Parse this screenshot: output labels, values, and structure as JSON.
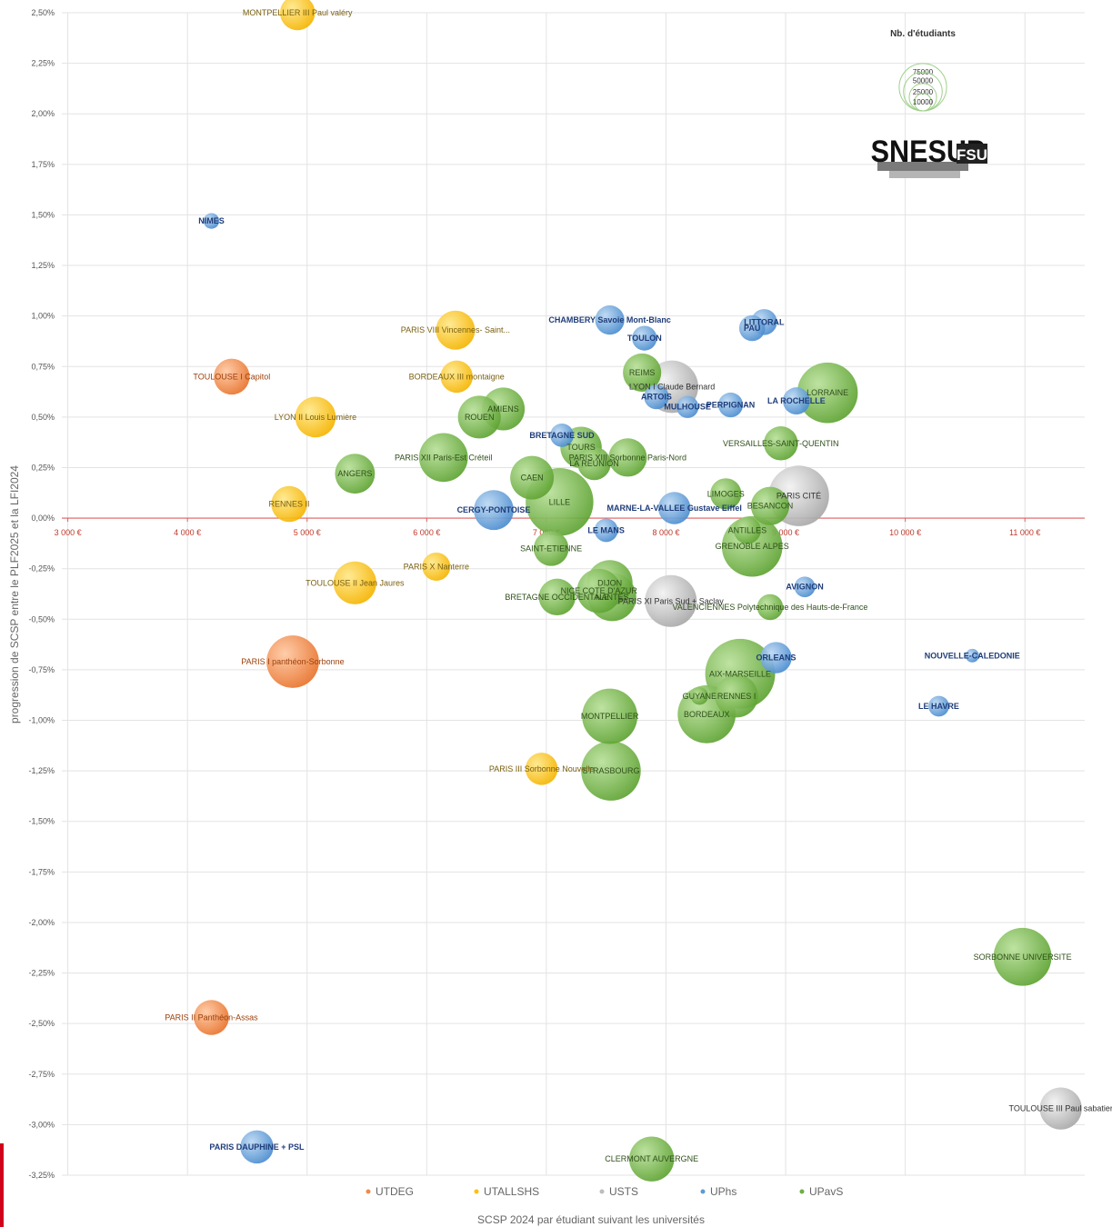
{
  "colors": {
    "UTDEG": "#f08a4b",
    "UTALLSHS": "#ffc000",
    "USTS": "#bdbdbd",
    "UPhs": "#5b9bd5",
    "UPavS": "#70ad47",
    "zero_line": "#e06060",
    "grid": "#e3e3e3"
  },
  "logo": {
    "text": "SNESUP",
    "suffix": "FSU"
  },
  "chart_data": {
    "type": "bubble",
    "xlabel": "SCSP 2024 par étudiant suivant les universités",
    "ylabel": "progression de SCSP entre le PLF2025 et la LFI2024",
    "xlim": [
      2950,
      11500
    ],
    "ylim": [
      -3.25,
      2.5
    ],
    "x_ticks": [
      3000,
      4000,
      5000,
      6000,
      7000,
      8000,
      9000,
      10000,
      11000
    ],
    "x_tick_labels": [
      "3 000 €",
      "4 000 €",
      "5 000 €",
      "6 000 €",
      "7 000 €",
      "8 000 €",
      "9 000 €",
      "10 000 €",
      "11 000 €"
    ],
    "y_ticks": [
      2.5,
      2.25,
      2.0,
      1.75,
      1.5,
      1.25,
      1.0,
      0.75,
      0.5,
      0.25,
      0.0,
      -0.25,
      -0.5,
      -0.75,
      -1.0,
      -1.25,
      -1.5,
      -1.75,
      -2.0,
      -2.25,
      -2.5,
      -2.75,
      -3.0,
      -3.25
    ],
    "y_tick_labels": [
      "2,50%",
      "2,25%",
      "2,00%",
      "1,75%",
      "1,50%",
      "1,25%",
      "1,00%",
      "0,75%",
      "0,50%",
      "0,25%",
      "0,00%",
      "-0,25%",
      "-0,50%",
      "-0,75%",
      "-1,00%",
      "-1,25%",
      "-1,50%",
      "-1,75%",
      "-2,00%",
      "-2,25%",
      "-2,50%",
      "-2,75%",
      "-3,00%",
      "-3,25%"
    ],
    "size_legend": {
      "title": "Nb. d'étudiants",
      "values": [
        75000,
        50000,
        25000,
        10000
      ],
      "labels": [
        "75000",
        "50000",
        "25000",
        "10000"
      ]
    },
    "series": [
      {
        "name": "UTDEG",
        "points": [
          {
            "label": "TOULOUSE I Capitol",
            "x": 4370,
            "y": 0.7,
            "students": 21000
          },
          {
            "label": "PARIS I panthéon-Sorbonne",
            "x": 4880,
            "y": -0.71,
            "students": 45000
          },
          {
            "label": "PARIS II Panthéon-Assas",
            "x": 4200,
            "y": -2.47,
            "students": 20000
          }
        ]
      },
      {
        "name": "UTALLSHS",
        "points": [
          {
            "label": "MONTPELLIER III Paul valéry",
            "x": 4920,
            "y": 2.5,
            "students": 20000
          },
          {
            "label": "PARIS VIII Vincennes- Saint...",
            "x": 6240,
            "y": 0.93,
            "students": 25000
          },
          {
            "label": "BORDEAUX III montaigne",
            "x": 6250,
            "y": 0.7,
            "students": 17000
          },
          {
            "label": "LYON II Louis Lumière",
            "x": 5070,
            "y": 0.5,
            "students": 27000
          },
          {
            "label": "RENNES II",
            "x": 4850,
            "y": 0.07,
            "students": 21000
          },
          {
            "label": "PARIS X Nanterre",
            "x": 6080,
            "y": -0.24,
            "students": 13000
          },
          {
            "label": "TOULOUSE II Jean Jaures",
            "x": 5400,
            "y": -0.32,
            "students": 30000
          },
          {
            "label": "PARIS III Sorbonne Nouvelle",
            "x": 6960,
            "y": -1.24,
            "students": 17000
          }
        ]
      },
      {
        "name": "USTS",
        "points": [
          {
            "label": "LYON I Claude Bernard",
            "x": 8050,
            "y": 0.65,
            "students": 45000
          },
          {
            "label": "PARIS CITÉ",
            "x": 9110,
            "y": 0.11,
            "students": 60000
          },
          {
            "label": "PARIS XI Paris Sud + Saclay",
            "x": 8040,
            "y": -0.41,
            "students": 44000
          },
          {
            "label": "TOULOUSE III Paul sabatier",
            "x": 11300,
            "y": -2.92,
            "students": 29000
          }
        ]
      },
      {
        "name": "UPhs",
        "points": [
          {
            "label": "NIMES",
            "x": 4200,
            "y": 1.47,
            "students": 4000
          },
          {
            "label": "CHAMBERY Savoie Mont-Blanc",
            "x": 7530,
            "y": 0.98,
            "students": 14000
          },
          {
            "label": "TOULON",
            "x": 7820,
            "y": 0.89,
            "students": 10000
          },
          {
            "label": "LITTORAL",
            "x": 8820,
            "y": 0.97,
            "students": 11000
          },
          {
            "label": "PAU",
            "x": 8720,
            "y": 0.94,
            "students": 11000
          },
          {
            "label": "ARTOIS",
            "x": 7920,
            "y": 0.6,
            "students": 10000
          },
          {
            "label": "MULHOUSE",
            "x": 8180,
            "y": 0.55,
            "students": 8000
          },
          {
            "label": "PERPIGNAN",
            "x": 8540,
            "y": 0.56,
            "students": 10000
          },
          {
            "label": "LA ROCHELLE",
            "x": 9090,
            "y": 0.58,
            "students": 12000
          },
          {
            "label": "BRETAGNE SUD",
            "x": 7130,
            "y": 0.41,
            "students": 9000
          },
          {
            "label": "CERGY-PONTOISE",
            "x": 6560,
            "y": 0.04,
            "students": 26000
          },
          {
            "label": "MARNE-LA-VALLEE Gustave Eiffel",
            "x": 8070,
            "y": 0.05,
            "students": 17000
          },
          {
            "label": "LE MANS",
            "x": 7500,
            "y": -0.06,
            "students": 9000
          },
          {
            "label": "AVIGNON",
            "x": 9160,
            "y": -0.34,
            "students": 7000
          },
          {
            "label": "ORLEANS",
            "x": 8920,
            "y": -0.69,
            "students": 16000
          },
          {
            "label": "NOUVELLE-CALEDONIE",
            "x": 10560,
            "y": -0.68,
            "students": 3000
          },
          {
            "label": "LE HAVRE",
            "x": 10280,
            "y": -0.93,
            "students": 7000
          },
          {
            "label": "PARIS DAUPHINE + PSL",
            "x": 4580,
            "y": -3.11,
            "students": 18000
          }
        ]
      },
      {
        "name": "UPavS",
        "points": [
          {
            "label": "REIMS",
            "x": 7800,
            "y": 0.72,
            "students": 24000
          },
          {
            "label": "LORRAINE",
            "x": 9350,
            "y": 0.62,
            "students": 60000
          },
          {
            "label": "AMIENS",
            "x": 6640,
            "y": 0.54,
            "students": 30000
          },
          {
            "label": "ROUEN",
            "x": 6440,
            "y": 0.5,
            "students": 30000
          },
          {
            "label": "VERSAILLES-SAINT-QUENTIN",
            "x": 8960,
            "y": 0.37,
            "students": 19000
          },
          {
            "label": "PARIS XII Paris-Est Créteil",
            "x": 6140,
            "y": 0.3,
            "students": 39000
          },
          {
            "label": "TOURS",
            "x": 7290,
            "y": 0.35,
            "students": 28000
          },
          {
            "label": "PARIS XIII Sorbonne Paris-Nord",
            "x": 7680,
            "y": 0.3,
            "students": 24000
          },
          {
            "label": "LA REUNION",
            "x": 7400,
            "y": 0.27,
            "students": 18000
          },
          {
            "label": "ANGERS",
            "x": 5400,
            "y": 0.22,
            "students": 26000
          },
          {
            "label": "CAEN",
            "x": 6880,
            "y": 0.2,
            "students": 31000
          },
          {
            "label": "LIMOGES",
            "x": 8500,
            "y": 0.12,
            "students": 16000
          },
          {
            "label": "BESANCON",
            "x": 8870,
            "y": 0.06,
            "students": 24000
          },
          {
            "label": "LILLE",
            "x": 7110,
            "y": 0.08,
            "students": 75000
          },
          {
            "label": "ANTILLES",
            "x": 8680,
            "y": -0.06,
            "students": 12000
          },
          {
            "label": "SAINT-ETIENNE",
            "x": 7040,
            "y": -0.15,
            "students": 20000
          },
          {
            "label": "GRENOBLE ALPES",
            "x": 8720,
            "y": -0.14,
            "students": 60000
          },
          {
            "label": "DIJON",
            "x": 7530,
            "y": -0.32,
            "students": 34000
          },
          {
            "label": "NICE COTE D'AZUR",
            "x": 7440,
            "y": -0.36,
            "students": 32000
          },
          {
            "label": "BRETAGNE OCCIDENTALE",
            "x": 7090,
            "y": -0.39,
            "students": 22000
          },
          {
            "label": "NANTES",
            "x": 7550,
            "y": -0.39,
            "students": 38000
          },
          {
            "label": "VALENCIENNES Polytechnique des Hauts-de-France",
            "x": 8870,
            "y": -0.44,
            "students": 11000
          },
          {
            "label": "AIX-MARSEILLE",
            "x": 8620,
            "y": -0.77,
            "students": 80000
          },
          {
            "label": "RENNES I",
            "x": 8590,
            "y": -0.88,
            "students": 30000
          },
          {
            "label": "GUYANE",
            "x": 8280,
            "y": -0.88,
            "students": 5000
          },
          {
            "label": "BORDEAUX",
            "x": 8340,
            "y": -0.97,
            "students": 55000
          },
          {
            "label": "MONTPELLIER",
            "x": 7530,
            "y": -0.98,
            "students": 50000
          },
          {
            "label": "STRASBOURG",
            "x": 7540,
            "y": -1.25,
            "students": 58000
          },
          {
            "label": "SORBONNE UNIVERSITE",
            "x": 10980,
            "y": -2.17,
            "students": 55000
          },
          {
            "label": "CLERMONT AUVERGNE",
            "x": 7880,
            "y": -3.17,
            "students": 33000
          }
        ]
      }
    ],
    "legend": [
      "UTDEG",
      "UTALLSHS",
      "USTS",
      "UPhs",
      "UPavS"
    ],
    "legend_position": "bottom",
    "grid": true
  }
}
